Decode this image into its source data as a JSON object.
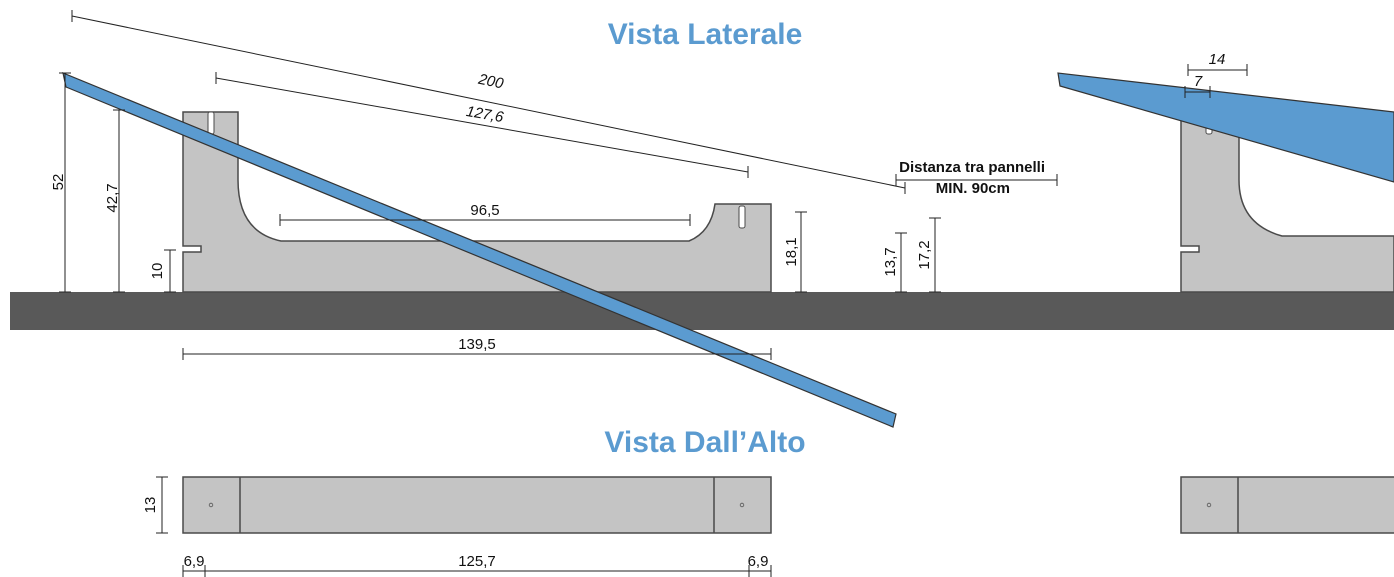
{
  "titles": {
    "side_view": "Vista Laterale",
    "top_view": "Vista Dall’Alto"
  },
  "dimensions": {
    "panel_length": "200",
    "support_top_length": "127,6",
    "inner_span": "96,5",
    "base_length": "139,5",
    "total_height": "52",
    "front_post_height": "42,7",
    "base_slot_height": "10",
    "rear_lug_height": "18,1",
    "panel_low_edge": "13,7",
    "panel_low_edge_top": "17,2",
    "clamp_width": "14",
    "clamp_half": "7",
    "top_width": "13",
    "top_left_end": "6,9",
    "top_middle": "125,7",
    "top_right_end": "6,9"
  },
  "notes": {
    "spacing_line1": "Distanza tra pannelli",
    "spacing_line2": "MIN. 90cm"
  },
  "colors": {
    "title": "#5b9bd0",
    "panel": "#5b9bd0",
    "support": "#c4c4c4",
    "ground": "#595959",
    "outline": "#4a4a4a"
  }
}
